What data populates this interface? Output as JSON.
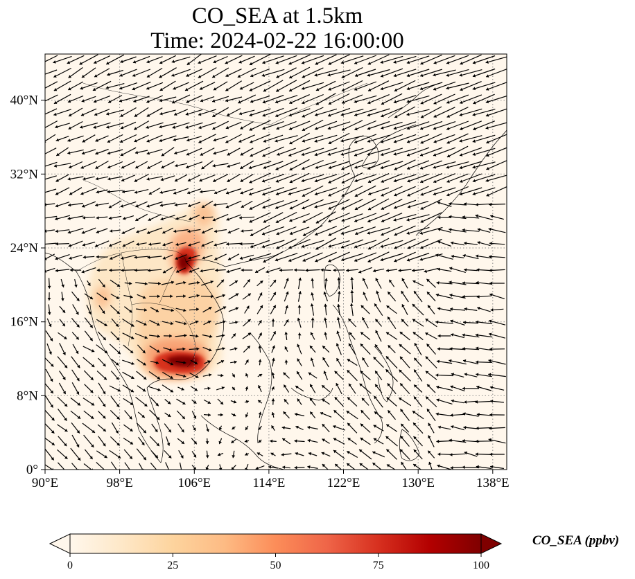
{
  "title": {
    "line1": "CO_SEA at 1.5km",
    "line2": "Time: 2024-02-22 16:00:00"
  },
  "map": {
    "lon_range": [
      90,
      139.5
    ],
    "lat_range": [
      0,
      45
    ],
    "lon_ticks": [
      "90°E",
      "98°E",
      "106°E",
      "114°E",
      "122°E",
      "130°E",
      "138°E"
    ],
    "lat_ticks": [
      "0°",
      "8°N",
      "16°N",
      "24°N",
      "32°N",
      "40°N"
    ],
    "gridlines": "dotted",
    "overlay": "wind vectors (black arrows)",
    "hotspots": [
      {
        "region": "Cambodia / southern Indochina",
        "value_ppbv": 100
      },
      {
        "region": "northern Vietnam / Guangxi",
        "value_ppbv": 95
      }
    ]
  },
  "colorbar": {
    "label": "CO_SEA (ppbv)",
    "ticks": [
      "0",
      "25",
      "50",
      "75",
      "100"
    ],
    "range": [
      0,
      100
    ],
    "colormap": "OrRd",
    "colors": [
      "#fff7ec",
      "#fee8c8",
      "#fdd49e",
      "#fdbb84",
      "#fc8d59",
      "#ef6548",
      "#d7301f",
      "#b30000",
      "#7f0000"
    ],
    "extend": "both"
  }
}
